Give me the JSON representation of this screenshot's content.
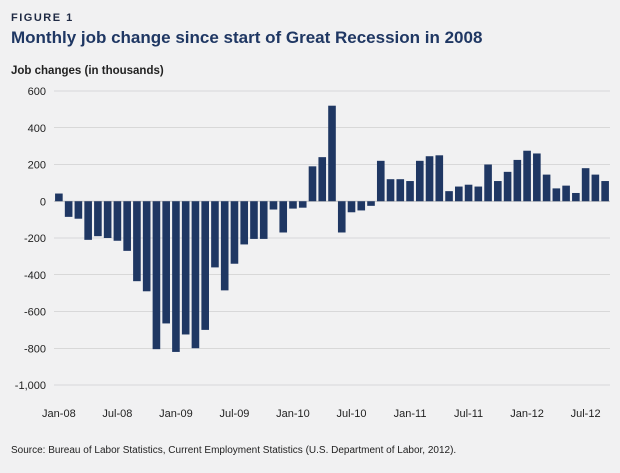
{
  "figure_label": "FIGURE 1",
  "source": "Source: Bureau of Labor Statistics, Current Employment Statistics (U.S. Department of Labor, 2012).",
  "colors": {
    "bar": "#1f3763",
    "grid": "#bfbfbf",
    "background": "#f1f1f2"
  },
  "chart_data": {
    "type": "bar",
    "title": "Monthly job change since start of Great Recession in 2008",
    "ylabel": "Job changes (in thousands)",
    "xlabel": "",
    "ylim": [
      -1000,
      600
    ],
    "yticks": [
      600,
      400,
      200,
      0,
      -200,
      -400,
      -600,
      -800,
      -1000
    ],
    "ytick_labels": [
      "600",
      "400",
      "200",
      "0",
      "-200",
      "-400",
      "-600",
      "-800",
      "-1,000"
    ],
    "xtick_labels": [
      {
        "label": "Jan-08",
        "index": 0
      },
      {
        "label": "Jul-08",
        "index": 6
      },
      {
        "label": "Jan-09",
        "index": 12
      },
      {
        "label": "Jul-09",
        "index": 18
      },
      {
        "label": "Jan-10",
        "index": 24
      },
      {
        "label": "Jul-10",
        "index": 30
      },
      {
        "label": "Jan-11",
        "index": 36
      },
      {
        "label": "Jul-11",
        "index": 42
      },
      {
        "label": "Jan-12",
        "index": 48
      },
      {
        "label": "Jul-12",
        "index": 54
      }
    ],
    "categories": [
      "Jan-08",
      "Feb-08",
      "Mar-08",
      "Apr-08",
      "May-08",
      "Jun-08",
      "Jul-08",
      "Aug-08",
      "Sep-08",
      "Oct-08",
      "Nov-08",
      "Dec-08",
      "Jan-09",
      "Feb-09",
      "Mar-09",
      "Apr-09",
      "May-09",
      "Jun-09",
      "Jul-09",
      "Aug-09",
      "Sep-09",
      "Oct-09",
      "Nov-09",
      "Dec-09",
      "Jan-10",
      "Feb-10",
      "Mar-10",
      "Apr-10",
      "May-10",
      "Jun-10",
      "Jul-10",
      "Aug-10",
      "Sep-10",
      "Oct-10",
      "Nov-10",
      "Dec-10",
      "Jan-11",
      "Feb-11",
      "Mar-11",
      "Apr-11",
      "May-11",
      "Jun-11",
      "Jul-11",
      "Aug-11",
      "Sep-11",
      "Oct-11",
      "Nov-11",
      "Dec-11",
      "Jan-12",
      "Feb-12",
      "Mar-12",
      "Apr-12",
      "May-12",
      "Jun-12",
      "Jul-12",
      "Aug-12",
      "Sep-12"
    ],
    "values": [
      42,
      -85,
      -95,
      -210,
      -190,
      -200,
      -215,
      -270,
      -435,
      -490,
      -805,
      -665,
      -820,
      -725,
      -800,
      -700,
      -360,
      -485,
      -340,
      -235,
      -205,
      -205,
      -45,
      -170,
      -40,
      -35,
      190,
      240,
      520,
      -170,
      -60,
      -50,
      -25,
      220,
      120,
      120,
      110,
      220,
      245,
      250,
      55,
      80,
      90,
      80,
      200,
      110,
      160,
      225,
      275,
      260,
      145,
      70,
      85,
      45,
      180,
      145,
      110
    ]
  }
}
